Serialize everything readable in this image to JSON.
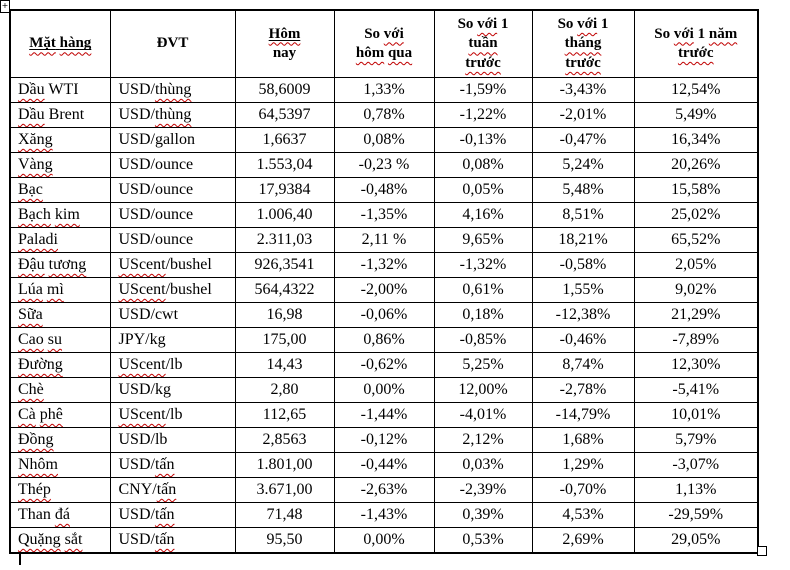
{
  "header": {
    "c1": "Mặt hàng",
    "c2": "ĐVT",
    "c3l1": "Hôm",
    "c3l2": "nay",
    "c4l1": "So với",
    "c4l2": "hôm qua",
    "c5l1": "So với 1",
    "c5l2": "tuần",
    "c5l3": "trước",
    "c6l1": "So với 1",
    "c6l2": "tháng",
    "c6l3": "trước",
    "c7l1": "So với 1 năm",
    "c7l2": "trước"
  },
  "rows": [
    {
      "name": "Dầu WTI",
      "unit": "USD/thùng",
      "today": "58,6009",
      "vs_yesterday": "1,33%",
      "vs_week": "-1,59%",
      "vs_month": "-3,43%",
      "vs_year": "12,54%"
    },
    {
      "name": "Dầu Brent",
      "unit": "USD/thùng",
      "today": "64,5397",
      "vs_yesterday": "0,78%",
      "vs_week": "-1,22%",
      "vs_month": "-2,01%",
      "vs_year": "5,49%"
    },
    {
      "name": "Xăng",
      "unit": "USD/gallon",
      "today": "1,6637",
      "vs_yesterday": "0,08%",
      "vs_week": "-0,13%",
      "vs_month": "-0,47%",
      "vs_year": "16,34%"
    },
    {
      "name": "Vàng",
      "unit": "USD/ounce",
      "today": "1.553,04",
      "vs_yesterday": "-0,23 %",
      "vs_week": "0,08%",
      "vs_month": "5,24%",
      "vs_year": "20,26%"
    },
    {
      "name": "Bạc",
      "unit": "USD/ounce",
      "today": "17,9384",
      "vs_yesterday": "-0,48%",
      "vs_week": "0,05%",
      "vs_month": "5,48%",
      "vs_year": "15,58%"
    },
    {
      "name": "Bạch kim",
      "unit": "USD/ounce",
      "today": "1.006,40",
      "vs_yesterday": "-1,35%",
      "vs_week": "4,16%",
      "vs_month": "8,51%",
      "vs_year": "25,02%"
    },
    {
      "name": "Paladi",
      "unit": "USD/ounce",
      "today": "2.311,03",
      "vs_yesterday": "2,11 %",
      "vs_week": "9,65%",
      "vs_month": "18,21%",
      "vs_year": "65,52%"
    },
    {
      "name": "Đậu tương",
      "unit": "UScent/bushel",
      "today": "926,3541",
      "vs_yesterday": "-1,32%",
      "vs_week": "-1,32%",
      "vs_month": "-0,58%",
      "vs_year": "2,05%"
    },
    {
      "name": "Lúa mì",
      "unit": "UScent/bushel",
      "today": "564,4322",
      "vs_yesterday": "-2,00%",
      "vs_week": "0,61%",
      "vs_month": "1,55%",
      "vs_year": "9,02%"
    },
    {
      "name": "Sữa",
      "unit": "USD/cwt",
      "today": "16,98",
      "vs_yesterday": "-0,06%",
      "vs_week": "0,18%",
      "vs_month": "-12,38%",
      "vs_year": "21,29%"
    },
    {
      "name": "Cao su",
      "unit": "JPY/kg",
      "today": "175,00",
      "vs_yesterday": "0,86%",
      "vs_week": "-0,85%",
      "vs_month": "-0,46%",
      "vs_year": "-7,89%"
    },
    {
      "name": "Đường",
      "unit": "UScent/lb",
      "today": "14,43",
      "vs_yesterday": "-0,62%",
      "vs_week": "5,25%",
      "vs_month": "8,74%",
      "vs_year": "12,30%"
    },
    {
      "name": "Chè",
      "unit": "USD/kg",
      "today": "2,80",
      "vs_yesterday": "0,00%",
      "vs_week": "12,00%",
      "vs_month": "-2,78%",
      "vs_year": "-5,41%"
    },
    {
      "name": "Cà phê",
      "unit": "UScent/lb",
      "today": "112,65",
      "vs_yesterday": "-1,44%",
      "vs_week": "-4,01%",
      "vs_month": "-14,79%",
      "vs_year": "10,01%"
    },
    {
      "name": "Đồng",
      "unit": "USD/lb",
      "today": "2,8563",
      "vs_yesterday": "-0,12%",
      "vs_week": "2,12%",
      "vs_month": "1,68%",
      "vs_year": "5,79%"
    },
    {
      "name": "Nhôm",
      "unit": "USD/tấn",
      "today": "1.801,00",
      "vs_yesterday": "-0,44%",
      "vs_week": "0,03%",
      "vs_month": "1,29%",
      "vs_year": "-3,07%"
    },
    {
      "name": "Thép",
      "unit": "CNY/tấn",
      "today": "3.671,00",
      "vs_yesterday": "-2,63%",
      "vs_week": "-2,39%",
      "vs_month": "-0,70%",
      "vs_year": "1,13%"
    },
    {
      "name": "Than đá",
      "unit": "USD/tấn",
      "today": "71,48",
      "vs_yesterday": "-1,43%",
      "vs_week": "0,39%",
      "vs_month": "4,53%",
      "vs_year": "-29,59%"
    },
    {
      "name": "Quặng sắt",
      "unit": "USD/tấn",
      "today": "95,50",
      "vs_yesterday": "0,00%",
      "vs_week": "0,53%",
      "vs_month": "2,69%",
      "vs_year": "29,05%"
    }
  ],
  "misspelled_words": [
    "Mặt",
    "hàng",
    "Hôm",
    "với",
    "hôm",
    "qua",
    "tuần",
    "trước",
    "tháng",
    "năm",
    "Dầu",
    "Xăng",
    "Vàng",
    "Bạc",
    "Bạch",
    "kim",
    "Paladi",
    "Đậu",
    "tương",
    "Lúa",
    "mì",
    "Sữa",
    "Cao",
    "su",
    "Đường",
    "Chè",
    "Cà",
    "phê",
    "Đồng",
    "Nhôm",
    "Thép",
    "đá",
    "Quặng",
    "sắt",
    "thùng",
    "tấn",
    "UScent"
  ],
  "colors": {
    "squiggle": "#c00000",
    "border": "#000000",
    "text": "#000000",
    "background": "#ffffff"
  },
  "move_handle_glyph": "+"
}
